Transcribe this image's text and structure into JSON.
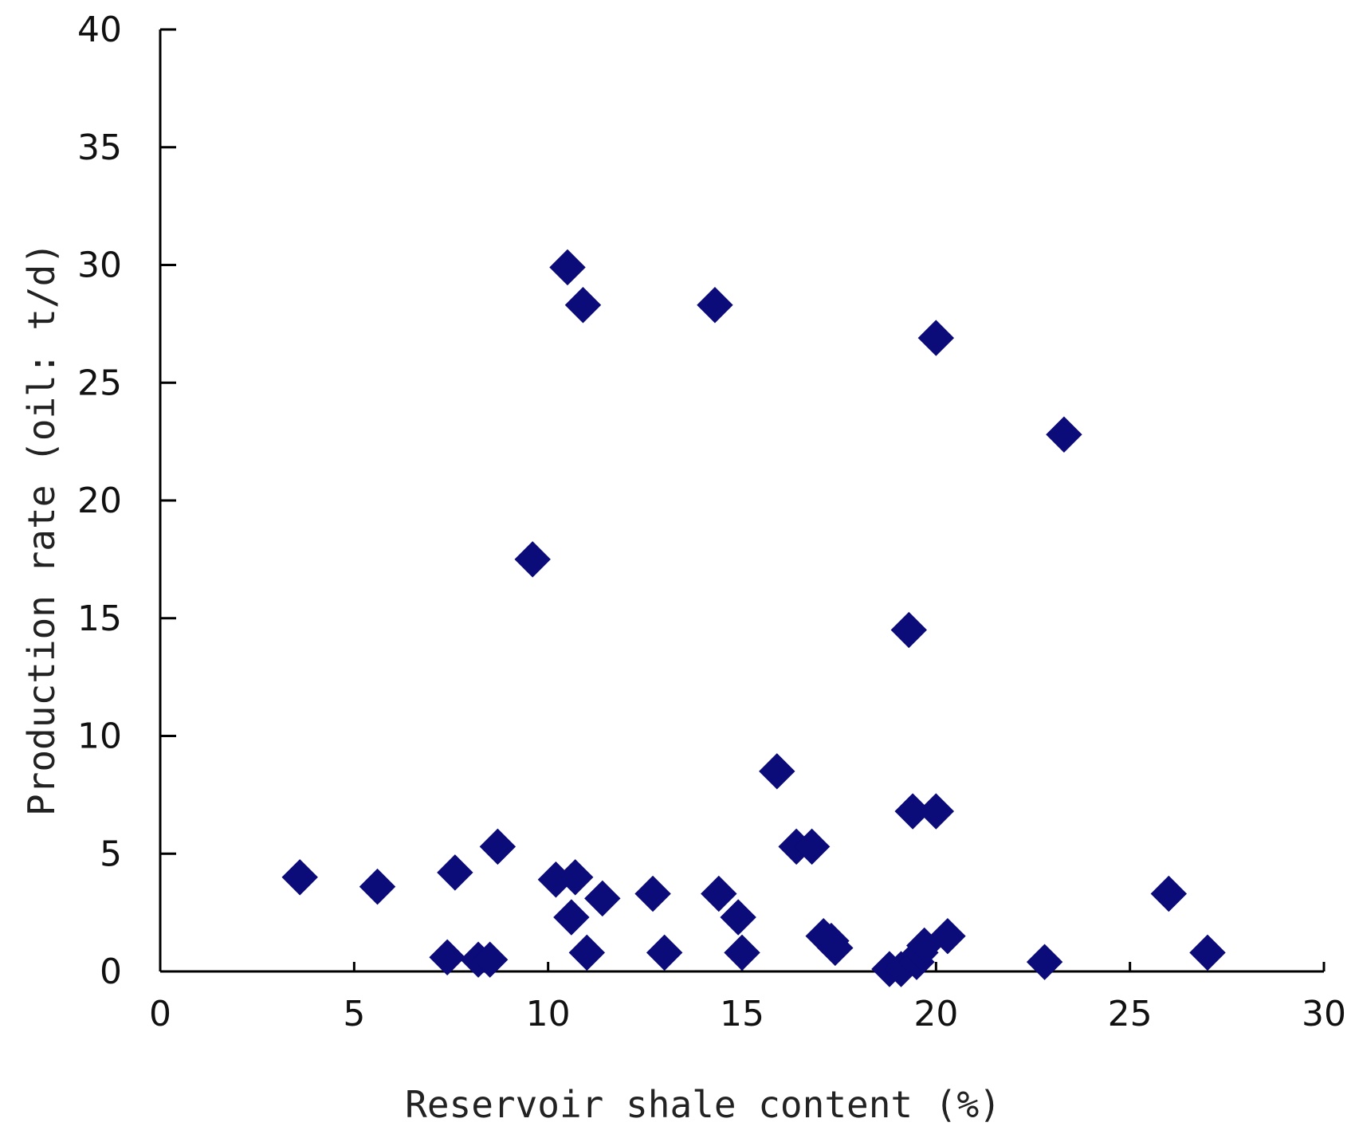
{
  "chart_data": {
    "type": "scatter",
    "title": "",
    "xlabel": "Reservoir shale content (%)",
    "ylabel": "Production rate (oil: t/d)",
    "xlim": [
      0,
      30
    ],
    "ylim": [
      0,
      40
    ],
    "xticks": [
      "0",
      "5",
      "10",
      "15",
      "20",
      "25",
      "30"
    ],
    "yticks": [
      "0",
      "5",
      "10",
      "15",
      "20",
      "25",
      "30",
      "35",
      "40"
    ],
    "grid": false,
    "legend": "none",
    "marker": "diamond",
    "color": "#0b0b7a",
    "series": [
      {
        "points": [
          [
            3.6,
            4.0
          ],
          [
            5.6,
            3.6
          ],
          [
            7.4,
            0.6
          ],
          [
            7.6,
            4.2
          ],
          [
            8.2,
            0.5
          ],
          [
            8.5,
            0.5
          ],
          [
            8.7,
            5.3
          ],
          [
            9.6,
            17.5
          ],
          [
            10.2,
            3.9
          ],
          [
            10.5,
            29.9
          ],
          [
            10.6,
            2.3
          ],
          [
            10.7,
            4.0
          ],
          [
            10.9,
            28.3
          ],
          [
            11.0,
            0.8
          ],
          [
            11.4,
            3.1
          ],
          [
            12.7,
            3.3
          ],
          [
            13.0,
            0.8
          ],
          [
            14.3,
            28.3
          ],
          [
            14.4,
            3.3
          ],
          [
            14.9,
            2.3
          ],
          [
            15.0,
            0.8
          ],
          [
            15.9,
            8.5
          ],
          [
            16.4,
            5.3
          ],
          [
            16.8,
            5.3
          ],
          [
            17.1,
            1.5
          ],
          [
            17.3,
            1.3
          ],
          [
            17.4,
            1.0
          ],
          [
            18.8,
            0.1
          ],
          [
            19.1,
            0.1
          ],
          [
            19.3,
            14.5
          ],
          [
            19.4,
            6.8
          ],
          [
            19.5,
            0.4
          ],
          [
            19.6,
            0.8
          ],
          [
            19.7,
            1.1
          ],
          [
            20.0,
            26.9
          ],
          [
            20.0,
            6.8
          ],
          [
            20.3,
            1.5
          ],
          [
            22.8,
            0.4
          ],
          [
            23.3,
            22.8
          ],
          [
            26.0,
            3.3
          ],
          [
            27.0,
            0.8
          ]
        ]
      }
    ]
  }
}
